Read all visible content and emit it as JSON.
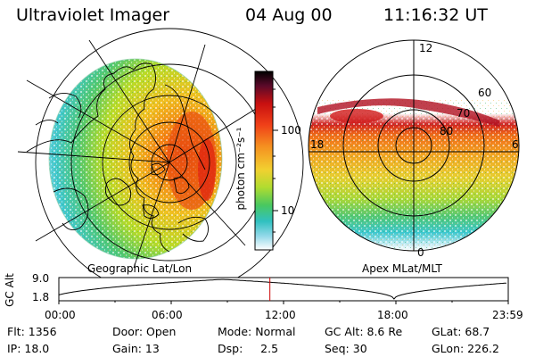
{
  "header": {
    "instrument": "Ultraviolet Imager",
    "date": "04 Aug 00",
    "time": "11:16:32 UT"
  },
  "geo_panel": {
    "label": "Geographic Lat/Lon"
  },
  "apex_panel": {
    "label": "Apex MLat/MLT",
    "mlt_labels": [
      "12",
      "18",
      "6",
      "0"
    ],
    "mlat_labels": [
      "60",
      "70",
      "80"
    ]
  },
  "colorbar": {
    "unit_label": "photon cm⁻²s⁻¹",
    "tick_labels": [
      "100",
      "10"
    ]
  },
  "altitude_plot": {
    "ylabel": "GC Alt",
    "y_ticks": [
      "9.0",
      "1.8"
    ],
    "x_ticks": [
      "00:00",
      "06:00",
      "12:00",
      "18:00",
      "23:59"
    ],
    "current_time_marker_hours": 11.27,
    "perigee_time_hours": 17.9,
    "alt_max": 9.0,
    "alt_min": 1.8
  },
  "footer": {
    "row1": {
      "flt": "Flt: 1356",
      "door": "Door: Open",
      "mode": "Mode: Normal",
      "gcalt": "GC Alt: 8.6 Re",
      "glat": "GLat:  68.7"
    },
    "row2": {
      "ip": "IP: 18.0",
      "gain": "Gain: 13",
      "dsp": "Dsp:     2.5",
      "seq": "Seq: 30",
      "glon": "GLon: 226.2"
    }
  },
  "colors": {
    "red_marker": "#cc0000",
    "colorbar_top": "#000000",
    "colorbar_bottom": "#ffffff"
  }
}
